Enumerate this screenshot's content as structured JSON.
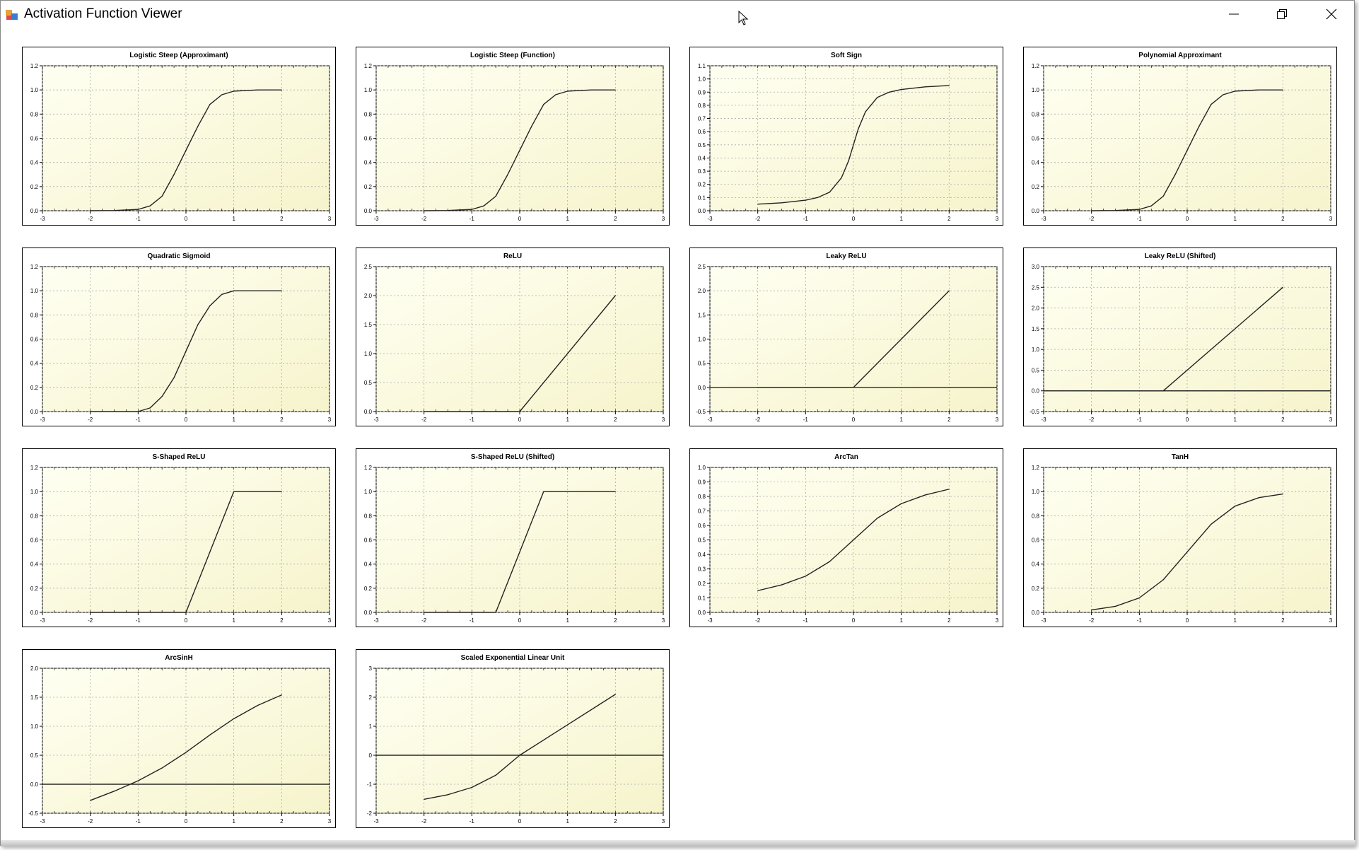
{
  "window": {
    "title": "Activation Function Viewer",
    "icons": {
      "app": "app-icon",
      "minimize": "minimize-icon",
      "maximize": "restore-icon",
      "close": "close-icon"
    }
  },
  "colors": {
    "plot_bg_light": "#fffff2",
    "plot_bg_dark": "#f6f4cc",
    "grid": "#a8a8a8",
    "line": "#222222"
  },
  "chart_data": [
    {
      "type": "line",
      "title": "Logistic Steep (Approximant)",
      "xlim": [
        -3,
        3
      ],
      "ylim": [
        0,
        1.2
      ],
      "yticks": [
        "0.0",
        "0.2",
        "0.4",
        "0.6",
        "0.8",
        "1.0",
        "1.2"
      ],
      "xticks": [
        "-3",
        "-2",
        "-1",
        "0",
        "1",
        "2",
        "3"
      ],
      "series": [
        {
          "x": [
            -2,
            -1.5,
            -1,
            -0.75,
            -0.5,
            -0.25,
            0,
            0.25,
            0.5,
            0.75,
            1,
            1.5,
            2
          ],
          "y": [
            0,
            0.002,
            0.011,
            0.04,
            0.12,
            0.3,
            0.5,
            0.7,
            0.88,
            0.96,
            0.99,
            1.0,
            1.0
          ]
        }
      ]
    },
    {
      "type": "line",
      "title": "Logistic Steep (Function)",
      "xlim": [
        -3,
        3
      ],
      "ylim": [
        0,
        1.2
      ],
      "yticks": [
        "0.0",
        "0.2",
        "0.4",
        "0.6",
        "0.8",
        "1.0",
        "1.2"
      ],
      "xticks": [
        "-3",
        "-2",
        "-1",
        "0",
        "1",
        "2",
        "3"
      ],
      "series": [
        {
          "x": [
            -2,
            -1.5,
            -1,
            -0.75,
            -0.5,
            -0.25,
            0,
            0.25,
            0.5,
            0.75,
            1,
            1.5,
            2
          ],
          "y": [
            0,
            0.002,
            0.011,
            0.04,
            0.12,
            0.3,
            0.5,
            0.7,
            0.88,
            0.96,
            0.99,
            1.0,
            1.0
          ]
        }
      ]
    },
    {
      "type": "line",
      "title": "Soft Sign",
      "xlim": [
        -3,
        3
      ],
      "ylim": [
        0,
        1.1
      ],
      "yticks": [
        "0.0",
        "0.1",
        "0.2",
        "0.3",
        "0.4",
        "0.5",
        "0.6",
        "0.7",
        "0.8",
        "0.9",
        "1.0",
        "1.1"
      ],
      "xticks": [
        "-3",
        "-2",
        "-1",
        "0",
        "1",
        "2",
        "3"
      ],
      "series": [
        {
          "x": [
            -2,
            -1.5,
            -1,
            -0.75,
            -0.5,
            -0.25,
            -0.1,
            0,
            0.1,
            0.25,
            0.5,
            0.75,
            1,
            1.5,
            2
          ],
          "y": [
            0.05,
            0.06,
            0.08,
            0.1,
            0.14,
            0.25,
            0.38,
            0.5,
            0.62,
            0.75,
            0.86,
            0.9,
            0.92,
            0.94,
            0.95
          ]
        }
      ]
    },
    {
      "type": "line",
      "title": "Polynomial Approximant",
      "xlim": [
        -3,
        3
      ],
      "ylim": [
        0,
        1.2
      ],
      "yticks": [
        "0.0",
        "0.2",
        "0.4",
        "0.6",
        "0.8",
        "1.0",
        "1.2"
      ],
      "xticks": [
        "-3",
        "-2",
        "-1",
        "0",
        "1",
        "2",
        "3"
      ],
      "series": [
        {
          "x": [
            -2,
            -1.5,
            -1,
            -0.75,
            -0.5,
            -0.25,
            0,
            0.25,
            0.5,
            0.75,
            1,
            1.5,
            2
          ],
          "y": [
            0,
            0.002,
            0.011,
            0.04,
            0.12,
            0.3,
            0.5,
            0.7,
            0.88,
            0.96,
            0.99,
            1.0,
            1.0
          ]
        }
      ]
    },
    {
      "type": "line",
      "title": "Quadratic Sigmoid",
      "xlim": [
        -3,
        3
      ],
      "ylim": [
        0,
        1.2
      ],
      "yticks": [
        "0.0",
        "0.2",
        "0.4",
        "0.6",
        "0.8",
        "1.0",
        "1.2"
      ],
      "xticks": [
        "-3",
        "-2",
        "-1",
        "0",
        "1",
        "2",
        "3"
      ],
      "series": [
        {
          "x": [
            -2,
            -1,
            -0.75,
            -0.5,
            -0.25,
            0,
            0.25,
            0.5,
            0.75,
            1,
            2
          ],
          "y": [
            0,
            0,
            0.03,
            0.125,
            0.28,
            0.5,
            0.72,
            0.875,
            0.97,
            1.0,
            1.0
          ]
        }
      ]
    },
    {
      "type": "line",
      "title": "ReLU",
      "xlim": [
        -3,
        3
      ],
      "ylim": [
        0,
        2.5
      ],
      "yticks": [
        "0.0",
        "0.5",
        "1.0",
        "1.5",
        "2.0",
        "2.5"
      ],
      "xticks": [
        "-3",
        "-2",
        "-1",
        "0",
        "1",
        "2",
        "3"
      ],
      "series": [
        {
          "x": [
            -2,
            0,
            2
          ],
          "y": [
            0,
            0,
            2
          ]
        }
      ]
    },
    {
      "type": "line",
      "title": "Leaky ReLU",
      "xlim": [
        -3,
        3
      ],
      "ylim": [
        -0.5,
        2.5
      ],
      "yticks": [
        "-0.5",
        "0.0",
        "0.5",
        "1.0",
        "1.5",
        "2.0",
        "2.5"
      ],
      "xticks": [
        "-3",
        "-2",
        "-1",
        "0",
        "1",
        "2",
        "3"
      ],
      "axis_line_y": 0,
      "series": [
        {
          "x": [
            -2,
            0,
            2
          ],
          "y": [
            0,
            0,
            2
          ]
        }
      ]
    },
    {
      "type": "line",
      "title": "Leaky ReLU (Shifted)",
      "xlim": [
        -3,
        3
      ],
      "ylim": [
        -0.5,
        3.0
      ],
      "yticks": [
        "-0.5",
        "0.0",
        "0.5",
        "1.0",
        "1.5",
        "2.0",
        "2.5",
        "3.0"
      ],
      "xticks": [
        "-3",
        "-2",
        "-1",
        "0",
        "1",
        "2",
        "3"
      ],
      "axis_line_y": 0,
      "series": [
        {
          "x": [
            -2,
            -0.5,
            2
          ],
          "y": [
            0,
            0,
            2.5
          ]
        }
      ]
    },
    {
      "type": "line",
      "title": "S-Shaped ReLU",
      "xlim": [
        -3,
        3
      ],
      "ylim": [
        0,
        1.2
      ],
      "yticks": [
        "0.0",
        "0.2",
        "0.4",
        "0.6",
        "0.8",
        "1.0",
        "1.2"
      ],
      "xticks": [
        "-3",
        "-2",
        "-1",
        "0",
        "1",
        "2",
        "3"
      ],
      "series": [
        {
          "x": [
            -2,
            0,
            1,
            2
          ],
          "y": [
            0,
            0,
            1,
            1
          ]
        }
      ]
    },
    {
      "type": "line",
      "title": "S-Shaped ReLU (Shifted)",
      "xlim": [
        -3,
        3
      ],
      "ylim": [
        0,
        1.2
      ],
      "yticks": [
        "0.0",
        "0.2",
        "0.4",
        "0.6",
        "0.8",
        "1.0",
        "1.2"
      ],
      "xticks": [
        "-3",
        "-2",
        "-1",
        "0",
        "1",
        "2",
        "3"
      ],
      "series": [
        {
          "x": [
            -2,
            -0.5,
            0.5,
            2
          ],
          "y": [
            0,
            0,
            1,
            1
          ]
        }
      ]
    },
    {
      "type": "line",
      "title": "ArcTan",
      "xlim": [
        -3,
        3
      ],
      "ylim": [
        0,
        1.0
      ],
      "yticks": [
        "0.0",
        "0.1",
        "0.2",
        "0.3",
        "0.4",
        "0.5",
        "0.6",
        "0.7",
        "0.8",
        "0.9",
        "1.0"
      ],
      "xticks": [
        "-3",
        "-2",
        "-1",
        "0",
        "1",
        "2",
        "3"
      ],
      "series": [
        {
          "x": [
            -2,
            -1.5,
            -1,
            -0.5,
            0,
            0.5,
            1,
            1.5,
            2
          ],
          "y": [
            0.15,
            0.19,
            0.25,
            0.35,
            0.5,
            0.65,
            0.75,
            0.81,
            0.85
          ]
        }
      ]
    },
    {
      "type": "line",
      "title": "TanH",
      "xlim": [
        -3,
        3
      ],
      "ylim": [
        0,
        1.2
      ],
      "yticks": [
        "0.0",
        "0.2",
        "0.4",
        "0.6",
        "0.8",
        "1.0",
        "1.2"
      ],
      "xticks": [
        "-3",
        "-2",
        "-1",
        "0",
        "1",
        "2",
        "3"
      ],
      "series": [
        {
          "x": [
            -2,
            -1.5,
            -1,
            -0.5,
            0,
            0.5,
            1,
            1.5,
            2
          ],
          "y": [
            0.02,
            0.05,
            0.12,
            0.27,
            0.5,
            0.73,
            0.88,
            0.95,
            0.98
          ]
        }
      ]
    },
    {
      "type": "line",
      "title": "ArcSinH",
      "xlim": [
        -3,
        3
      ],
      "ylim": [
        -0.5,
        2.0
      ],
      "yticks": [
        "-0.5",
        "0.0",
        "0.5",
        "1.0",
        "1.5",
        "2.0"
      ],
      "xticks": [
        "-3",
        "-2",
        "-1",
        "0",
        "1",
        "2",
        "3"
      ],
      "axis_line_y": 0,
      "series": [
        {
          "x": [
            -2,
            -1.5,
            -1,
            -0.5,
            0,
            0.5,
            1,
            1.5,
            2
          ],
          "y": [
            -0.28,
            -0.12,
            0.06,
            0.28,
            0.55,
            0.85,
            1.13,
            1.36,
            1.54
          ]
        }
      ]
    },
    {
      "type": "line",
      "title": "Scaled Exponential Linear Unit",
      "xlim": [
        -3,
        3
      ],
      "ylim": [
        -2,
        3
      ],
      "yticks": [
        "-2",
        "-1",
        "0",
        "1",
        "2",
        "3"
      ],
      "xticks": [
        "-3",
        "-2",
        "-1",
        "0",
        "1",
        "2",
        "3"
      ],
      "axis_line_y": 0,
      "series": [
        {
          "x": [
            -2,
            -1.5,
            -1,
            -0.5,
            0,
            1,
            2
          ],
          "y": [
            -1.52,
            -1.36,
            -1.11,
            -0.69,
            0,
            1.05,
            2.1
          ]
        }
      ]
    }
  ]
}
